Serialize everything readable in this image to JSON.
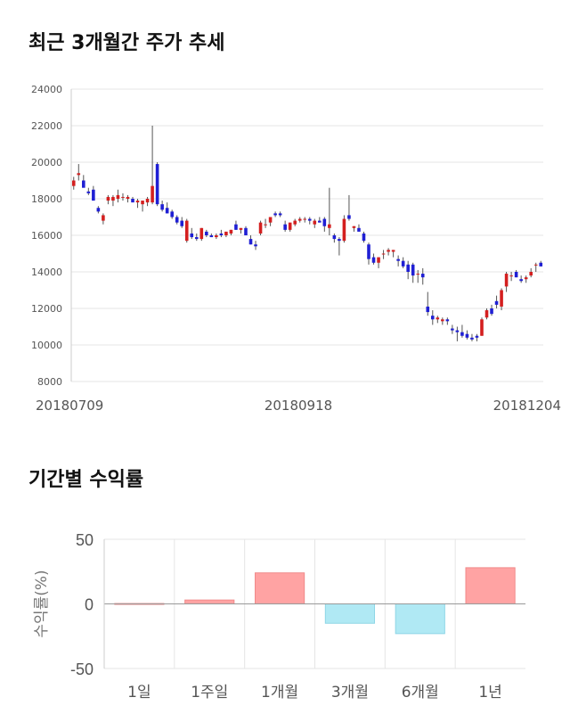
{
  "chart_data": [
    {
      "type": "candlestick",
      "title": "최근 3개월간 주가 추세",
      "ylim": [
        8000,
        24000
      ],
      "yticks": [
        8000,
        10000,
        12000,
        14000,
        16000,
        18000,
        20000,
        22000,
        24000
      ],
      "xticks": [
        "20180709",
        "20180918",
        "20181204"
      ],
      "grid": true,
      "colors": {
        "up": "#d41f1f",
        "down": "#1f1fd4",
        "wick": "#555555",
        "grid": "#e5e5e5"
      },
      "ohlc": [
        [
          18700,
          19200,
          18500,
          19000
        ],
        [
          19300,
          19900,
          19000,
          19400
        ],
        [
          19000,
          19300,
          18700,
          18600
        ],
        [
          18400,
          18600,
          18200,
          18300
        ],
        [
          18500,
          18700,
          17900,
          17900
        ],
        [
          17500,
          17600,
          17200,
          17300
        ],
        [
          16800,
          17200,
          16600,
          17100
        ],
        [
          17900,
          18200,
          17700,
          18100
        ],
        [
          17900,
          18200,
          17600,
          18100
        ],
        [
          18000,
          18500,
          17800,
          18200
        ],
        [
          18100,
          18300,
          17900,
          18100
        ],
        [
          18000,
          18200,
          17800,
          18100
        ],
        [
          18000,
          18100,
          17900,
          17800
        ],
        [
          17800,
          18000,
          17500,
          17900
        ],
        [
          17700,
          17900,
          17300,
          17900
        ],
        [
          17800,
          18100,
          17600,
          18000
        ],
        [
          17800,
          22000,
          17700,
          18700
        ],
        [
          19900,
          20000,
          17600,
          17700
        ],
        [
          17700,
          17900,
          17300,
          17400
        ],
        [
          17500,
          17800,
          17200,
          17200
        ],
        [
          17300,
          17400,
          16900,
          17000
        ],
        [
          17000,
          17100,
          16600,
          16700
        ],
        [
          16800,
          17000,
          16400,
          16500
        ],
        [
          15700,
          16900,
          15600,
          16800
        ],
        [
          16100,
          16400,
          15800,
          15900
        ],
        [
          15900,
          16100,
          15700,
          15800
        ],
        [
          15800,
          16400,
          15700,
          16400
        ],
        [
          16200,
          16300,
          15900,
          16000
        ],
        [
          16000,
          16100,
          15900,
          15900
        ],
        [
          15900,
          16100,
          15800,
          16000
        ],
        [
          16100,
          16300,
          15900,
          16000
        ],
        [
          16000,
          16200,
          15900,
          16200
        ],
        [
          16100,
          16300,
          16000,
          16300
        ],
        [
          16600,
          16800,
          16300,
          16300
        ],
        [
          16300,
          16400,
          16100,
          16400
        ],
        [
          16400,
          16500,
          16100,
          16000
        ],
        [
          15800,
          16000,
          15500,
          15500
        ],
        [
          15500,
          15700,
          15200,
          15400
        ],
        [
          16100,
          16800,
          16000,
          16700
        ],
        [
          16600,
          16900,
          16400,
          16600
        ],
        [
          16700,
          17000,
          16500,
          17000
        ],
        [
          17200,
          17300,
          17000,
          17100
        ],
        [
          17200,
          17300,
          17000,
          17100
        ],
        [
          16600,
          16800,
          16200,
          16300
        ],
        [
          16300,
          16600,
          16200,
          16700
        ],
        [
          16600,
          16900,
          16500,
          16800
        ],
        [
          16800,
          17000,
          16700,
          16900
        ],
        [
          16900,
          17000,
          16700,
          16900
        ],
        [
          16900,
          17000,
          16600,
          16800
        ],
        [
          16600,
          16900,
          16400,
          16800
        ],
        [
          16800,
          17000,
          16700,
          16700
        ],
        [
          16900,
          17000,
          16200,
          16500
        ],
        [
          16400,
          18600,
          16000,
          16600
        ],
        [
          16000,
          16100,
          15600,
          15800
        ],
        [
          15800,
          15900,
          14900,
          15700
        ],
        [
          15700,
          17100,
          15600,
          16900
        ],
        [
          17100,
          18200,
          16800,
          16900
        ],
        [
          16400,
          16500,
          16200,
          16500
        ],
        [
          16400,
          16600,
          16200,
          16200
        ],
        [
          16100,
          16200,
          15600,
          15700
        ],
        [
          15500,
          15600,
          14400,
          14700
        ],
        [
          14800,
          15000,
          14400,
          14500
        ],
        [
          14500,
          14800,
          14200,
          14800
        ],
        [
          15000,
          15200,
          14700,
          15000
        ],
        [
          15100,
          15300,
          14900,
          15200
        ],
        [
          15100,
          15200,
          14800,
          15200
        ],
        [
          14700,
          14900,
          14300,
          14600
        ],
        [
          14600,
          14800,
          14200,
          14300
        ],
        [
          14400,
          14600,
          13600,
          14000
        ],
        [
          14400,
          14500,
          13400,
          13800
        ],
        [
          13900,
          14100,
          13400,
          13900
        ],
        [
          13900,
          14200,
          13300,
          13700
        ],
        [
          12100,
          12900,
          11600,
          11800
        ],
        [
          11600,
          11900,
          11100,
          11400
        ],
        [
          11400,
          11600,
          11200,
          11500
        ],
        [
          11300,
          11500,
          11100,
          11400
        ],
        [
          11400,
          11500,
          11100,
          11300
        ],
        [
          10900,
          11100,
          10600,
          10800
        ],
        [
          10800,
          11000,
          10200,
          10700
        ],
        [
          10700,
          11100,
          10400,
          10500
        ],
        [
          10600,
          10800,
          10300,
          10400
        ],
        [
          10400,
          10600,
          10200,
          10300
        ],
        [
          10500,
          10600,
          10200,
          10400
        ],
        [
          10500,
          11500,
          10500,
          11400
        ],
        [
          11500,
          12000,
          11400,
          11900
        ],
        [
          12000,
          12200,
          11600,
          11700
        ],
        [
          12400,
          12700,
          12000,
          12200
        ],
        [
          12100,
          13100,
          11900,
          13000
        ],
        [
          13200,
          14000,
          12900,
          13900
        ],
        [
          13800,
          14000,
          13500,
          13800
        ],
        [
          14000,
          14100,
          13700,
          13700
        ],
        [
          13600,
          13800,
          13400,
          13500
        ],
        [
          13600,
          13800,
          13400,
          13700
        ],
        [
          13800,
          14200,
          13700,
          14000
        ],
        [
          14400,
          14500,
          14000,
          14400
        ],
        [
          14500,
          14600,
          14300,
          14300
        ]
      ]
    },
    {
      "type": "bar",
      "title": "기간별 수익률",
      "ylabel": "수익률(%)",
      "ylim": [
        -50,
        50
      ],
      "yticks": [
        -50,
        0,
        50
      ],
      "categories": [
        "1일",
        "1주일",
        "1개월",
        "3개월",
        "6개월",
        "1년"
      ],
      "values": [
        0.3,
        3,
        24,
        -15,
        -23,
        28
      ],
      "colors": {
        "positive": "#ffa3a3",
        "negative": "#b0e9f4",
        "zero_line": "#999999",
        "grid": "#e5e5e5"
      }
    }
  ]
}
